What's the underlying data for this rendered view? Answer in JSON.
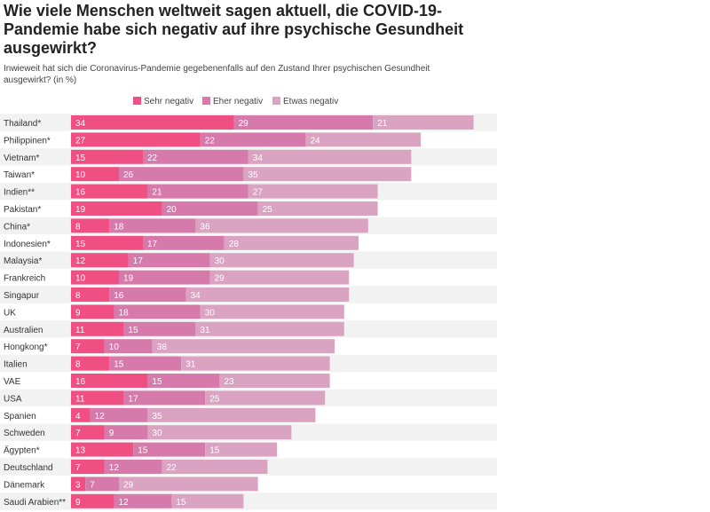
{
  "title": "Wie viele Menschen weltweit sagen aktuell, die COVID-19-Pandemie habe sich negativ auf ihre psychische Gesundheit ausgewirkt?",
  "subtitle": "Inwieweit hat sich die Coronavirus-Pandemie gegebenenfalls auf den Zustand Ihrer psychischen Gesundheit ausgewirkt? (in %)",
  "colors": {
    "sehr_negativ": "#ef4f82",
    "eher_negativ": "#d67aab",
    "etwas_negativ": "#dba3c2",
    "row_alt": "#f2f2f2"
  },
  "chart_data": {
    "type": "bar",
    "orientation": "horizontal",
    "stacked": true,
    "legend_position": "top",
    "categories": [
      "Thailand*",
      "Philippinen*",
      "Vietnam*",
      "Taiwan*",
      "Indien**",
      "Pakistan*",
      "China*",
      "Indonesien*",
      "Malaysia*",
      "Frankreich",
      "Singapur",
      "UK",
      "Australien",
      "Hongkong*",
      "Italien",
      "VAE",
      "USA",
      "Spanien",
      "Schweden",
      "Ägypten*",
      "Deutschland",
      "Dänemark",
      "Saudi Arabien**"
    ],
    "series": [
      {
        "name": "Sehr negativ",
        "values": [
          34,
          27,
          15,
          10,
          16,
          19,
          8,
          15,
          12,
          10,
          8,
          9,
          11,
          7,
          8,
          16,
          11,
          4,
          7,
          13,
          7,
          3,
          9
        ]
      },
      {
        "name": "Eher negativ",
        "values": [
          29,
          22,
          22,
          26,
          21,
          20,
          18,
          17,
          17,
          19,
          16,
          18,
          15,
          10,
          15,
          15,
          17,
          12,
          9,
          15,
          12,
          7,
          12
        ]
      },
      {
        "name": "Etwas negativ",
        "values": [
          21,
          24,
          34,
          35,
          27,
          25,
          36,
          28,
          30,
          29,
          34,
          30,
          31,
          38,
          31,
          23,
          25,
          35,
          30,
          15,
          22,
          29,
          15
        ]
      }
    ]
  }
}
